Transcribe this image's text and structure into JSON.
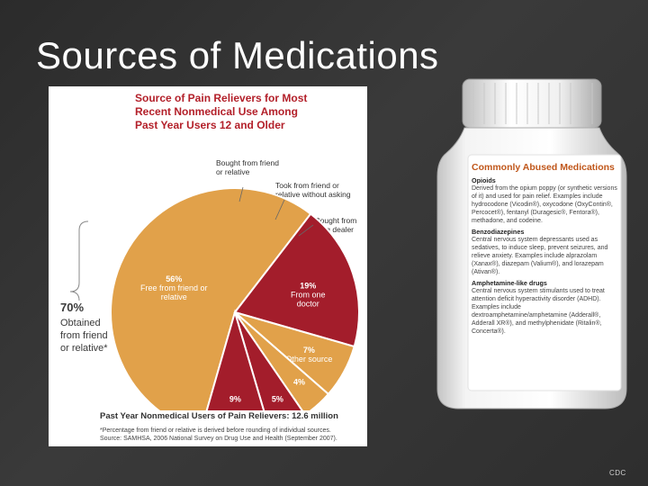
{
  "slide": {
    "title": "Sources of Medications",
    "credit": "CDC"
  },
  "figure": {
    "title_lines": [
      "Source of Pain Relievers for Most",
      "Recent Nonmedical Use Among",
      "Past Year Users 12 and Older"
    ],
    "big_pct": "70%",
    "big_note": "Obtained from friend or relative*",
    "footer": "Past Year Nonmedical Users of Pain Relievers: 12.6 million",
    "note_lines": [
      "*Percentage from friend or relative is derived before rounding of individual sources.",
      "Source: SAMHSA, 2006 National Survey on Drug Use and Health (September 2007)."
    ],
    "callouts": {
      "bought_friend": [
        "Bought from friend",
        "or relative"
      ],
      "took_friend": [
        "Took from friend or",
        "relative without asking"
      ],
      "drug_dealer": [
        "Bought from",
        "drug dealer"
      ]
    }
  },
  "chart_data": {
    "type": "pie",
    "title": "Source of Pain Relievers for Most Recent Nonmedical Use Among Past Year Users 12 and Older",
    "slices": [
      {
        "label": "Free from friend or relative",
        "value": 56,
        "display": "56%",
        "color": "#e1a14a"
      },
      {
        "label": "From one doctor",
        "value": 19,
        "display": "19%",
        "color": "#a31d2b"
      },
      {
        "label": "Other source",
        "value": 7,
        "display": "7%",
        "color": "#e1a14a"
      },
      {
        "label": "Bought from drug dealer",
        "value": 4,
        "display": "4%",
        "color": "#e1a14a"
      },
      {
        "label": "Took from friend or relative without asking",
        "value": 5,
        "display": "5%",
        "color": "#a31d2b"
      },
      {
        "label": "Bought from friend or relative",
        "value": 9,
        "display": "9%",
        "color": "#a31d2b"
      }
    ]
  },
  "bottle": {
    "title": "Commonly Abused Medications",
    "sections": [
      {
        "heading": "Opioids",
        "body": "Derived from the opium poppy (or synthetic versions of it) and used for pain relief. Examples include hydrocodone (Vicodin®), oxycodone (OxyContin®, Percocet®), fentanyl (Duragesic®, Fentora®), methadone, and codeine."
      },
      {
        "heading": "Benzodiazepines",
        "body": "Central nervous system depressants used as sedatives, to induce sleep, prevent seizures, and relieve anxiety. Examples include alprazolam (Xanax®), diazepam (Valium®), and lorazepam (Ativan®)."
      },
      {
        "heading": "Amphetamine-like drugs",
        "body": "Central nervous system stimulants used to treat attention deficit hyperactivity disorder (ADHD). Examples include dextroamphetamine/amphetamine (Adderall®, Adderall XR®), and methylphenidate (Ritalin®, Concerta®)."
      }
    ]
  }
}
